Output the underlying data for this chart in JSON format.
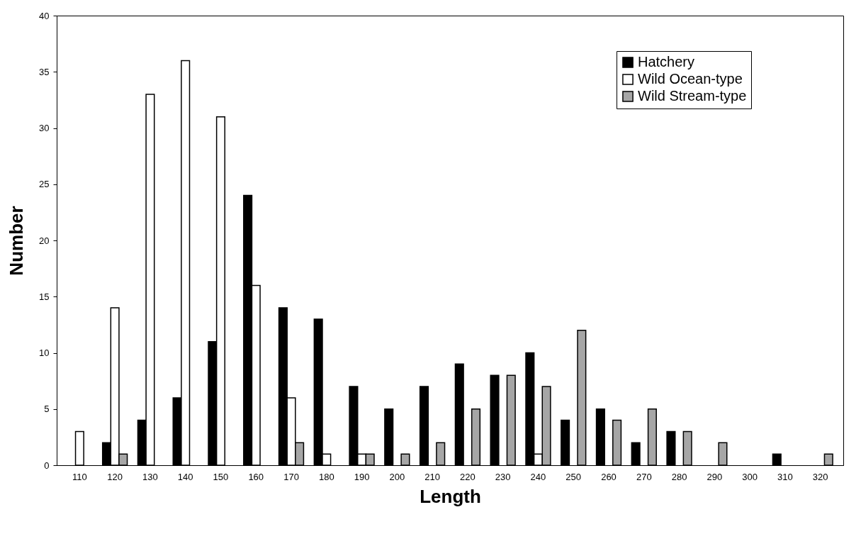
{
  "chart_data": {
    "type": "bar",
    "xlabel": "Length",
    "ylabel": "Number",
    "categories": [
      "110",
      "120",
      "130",
      "140",
      "150",
      "160",
      "170",
      "180",
      "190",
      "200",
      "210",
      "220",
      "230",
      "240",
      "250",
      "260",
      "270",
      "280",
      "290",
      "300",
      "310",
      "320"
    ],
    "series": [
      {
        "name": "Hatchery",
        "color": "#000000",
        "values": [
          null,
          2,
          4,
          6,
          11,
          24,
          14,
          13,
          7,
          5,
          7,
          9,
          8,
          10,
          4,
          5,
          2,
          3,
          null,
          null,
          1,
          null
        ]
      },
      {
        "name": "Wild Ocean-type",
        "color": "#ffffff",
        "values": [
          3,
          14,
          33,
          36,
          31,
          16,
          6,
          1,
          1,
          null,
          null,
          null,
          null,
          1,
          null,
          null,
          null,
          null,
          null,
          null,
          null,
          null
        ]
      },
      {
        "name": "Wild Stream-type",
        "color": "#a6a6a6",
        "values": [
          null,
          1,
          null,
          null,
          null,
          null,
          2,
          null,
          1,
          1,
          2,
          5,
          8,
          7,
          12,
          4,
          5,
          3,
          2,
          null,
          null,
          1
        ]
      }
    ],
    "ylim": [
      0,
      40
    ],
    "yticks": [
      0,
      5,
      10,
      15,
      20,
      25,
      30,
      35,
      40
    ],
    "grid": false,
    "legend": "top right"
  }
}
